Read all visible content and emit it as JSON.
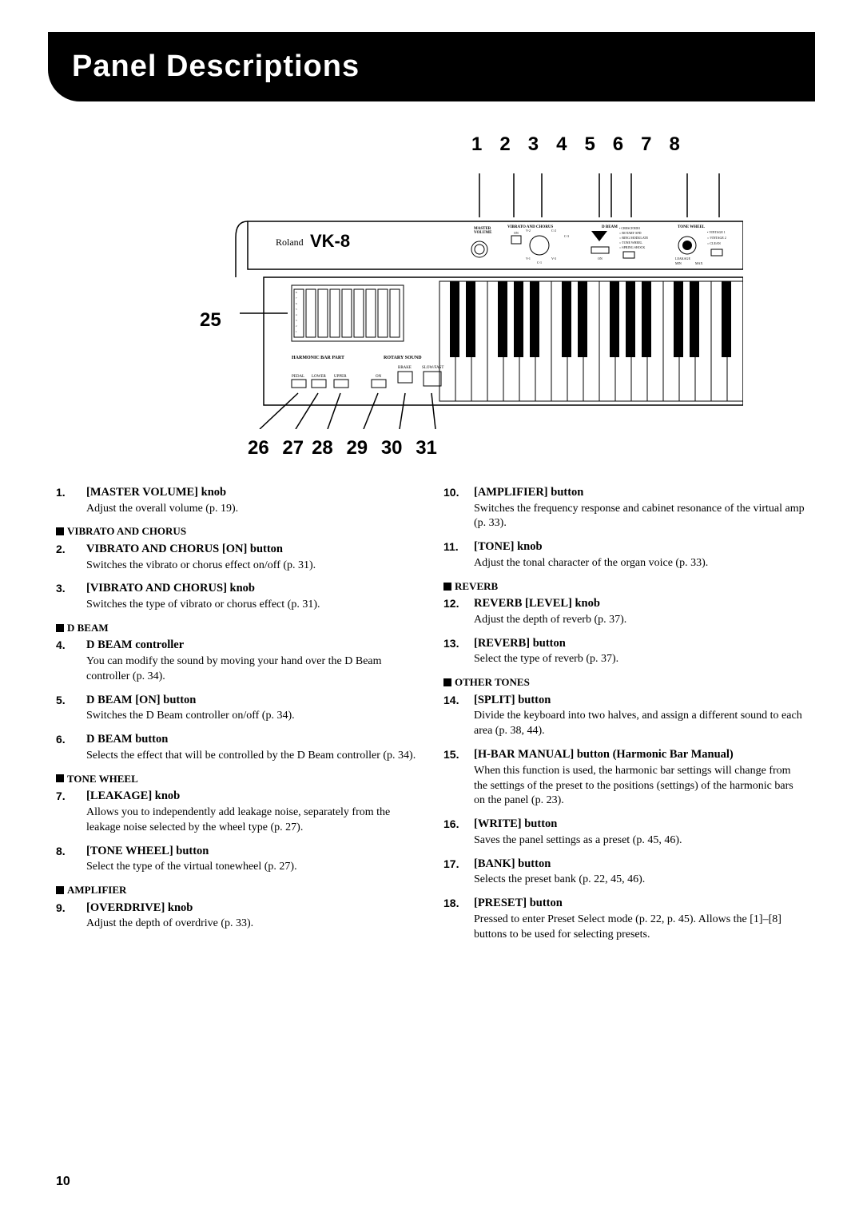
{
  "page": {
    "title": "Panel Descriptions",
    "page_number": "10"
  },
  "diagram": {
    "brand": "Roland",
    "model": "VK-8",
    "top_labels": [
      "1",
      "2",
      "3",
      "4",
      "5",
      "6",
      "7",
      "8"
    ],
    "left_label": "25",
    "bottom_labels": [
      "26",
      "27",
      "28",
      "29",
      "30",
      "31"
    ],
    "panel_labels": {
      "master_volume": "MASTER VOLUME",
      "vibrato_chorus": "VIBRATO AND CHORUS",
      "harmonic_bar": "HARMONIC BAR PART",
      "rotary_sound": "ROTARY SOUND",
      "pedal": "PEDAL",
      "lower": "LOWER",
      "upper": "UPPER",
      "brake": "BRAKE",
      "slow_fast": "SLOW/FAST",
      "on": "ON",
      "d_beam": "D BEAM",
      "tone_wheel": "TONE WHEEL",
      "leakage": "LEAKAGE",
      "crescendo": "CRESCENDO",
      "ring_mod": "RING MODULATE",
      "tone_wheel_2": "TONE WHEEL",
      "spring_shock": "SPRING SHOCK",
      "vinta1": "VINTAGE 1",
      "vinta2": "VINTAGE 2",
      "clean": "CLEAN"
    }
  },
  "left_col": [
    {
      "type": "item",
      "num": "1.",
      "title": "[MASTER VOLUME] knob",
      "desc": "Adjust the overall volume (p. 19)."
    },
    {
      "type": "section",
      "label": "VIBRATO AND CHORUS"
    },
    {
      "type": "item",
      "num": "2.",
      "title": "VIBRATO AND CHORUS [ON] button",
      "desc": "Switches the vibrato or chorus effect on/off (p. 31)."
    },
    {
      "type": "item",
      "num": "3.",
      "title": "[VIBRATO AND CHORUS] knob",
      "desc": "Switches the type of vibrato or chorus effect (p. 31)."
    },
    {
      "type": "section",
      "label": "D BEAM"
    },
    {
      "type": "item",
      "num": "4.",
      "title": "D BEAM controller",
      "desc": "You can modify the sound by moving your hand over the D Beam controller (p. 34)."
    },
    {
      "type": "item",
      "num": "5.",
      "title": "D BEAM [ON] button",
      "desc": "Switches the D Beam controller on/off (p. 34)."
    },
    {
      "type": "item",
      "num": "6.",
      "title": "D BEAM button",
      "desc": "Selects the effect that will be controlled by the D Beam controller (p. 34)."
    },
    {
      "type": "section",
      "label": "TONE WHEEL"
    },
    {
      "type": "item",
      "num": "7.",
      "title": "[LEAKAGE] knob",
      "desc": "Allows you to independently add leakage noise, separately from the leakage noise selected by the wheel type (p. 27)."
    },
    {
      "type": "item",
      "num": "8.",
      "title": "[TONE WHEEL] button",
      "desc": "Select the type of the virtual tonewheel (p. 27)."
    },
    {
      "type": "section",
      "label": "AMPLIFIER"
    },
    {
      "type": "item",
      "num": "9.",
      "title": "[OVERDRIVE] knob",
      "desc": "Adjust the depth of overdrive (p. 33)."
    }
  ],
  "right_col": [
    {
      "type": "item",
      "num": "10.",
      "title": "[AMPLIFIER] button",
      "desc": "Switches the frequency response and cabinet resonance of the virtual amp (p. 33)."
    },
    {
      "type": "item",
      "num": "11.",
      "title": "[TONE] knob",
      "desc": "Adjust the tonal character of the organ voice (p. 33)."
    },
    {
      "type": "section",
      "label": "REVERB"
    },
    {
      "type": "item",
      "num": "12.",
      "title": "REVERB [LEVEL] knob",
      "desc": "Adjust the depth of reverb (p. 37)."
    },
    {
      "type": "item",
      "num": "13.",
      "title": "[REVERB] button",
      "desc": "Select the type of reverb (p. 37)."
    },
    {
      "type": "section",
      "label": "OTHER TONES"
    },
    {
      "type": "item",
      "num": "14.",
      "title": "[SPLIT] button",
      "desc": "Divide the keyboard into two halves, and assign a different sound to each area (p. 38, 44)."
    },
    {
      "type": "item",
      "num": "15.",
      "title": "[H-BAR MANUAL] button (Harmonic Bar Manual)",
      "desc": "When this function is used, the harmonic bar settings will change from the settings of the preset to the positions (settings) of the harmonic bars on the panel (p. 23)."
    },
    {
      "type": "item",
      "num": "16.",
      "title": "[WRITE] button",
      "desc": "Saves the panel settings as a preset (p. 45, 46)."
    },
    {
      "type": "item",
      "num": "17.",
      "title": "[BANK] button",
      "desc": "Selects the preset bank (p. 22, 45, 46)."
    },
    {
      "type": "item",
      "num": "18.",
      "title": "[PRESET] button",
      "desc": "Pressed to enter Preset Select mode (p. 22, p. 45). Allows the [1]–[8] buttons to be used for selecting presets."
    }
  ]
}
